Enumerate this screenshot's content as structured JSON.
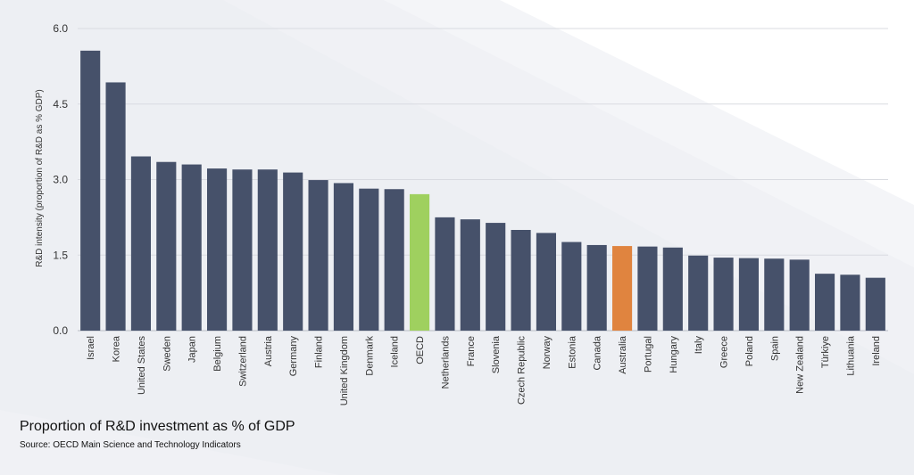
{
  "chart_data": {
    "type": "bar",
    "ylabel": "R&D intensity (proportion of R&D as % GDP)",
    "xlabel": "",
    "ylim": [
      0,
      6
    ],
    "yticks": [
      "0.0",
      "1.5",
      "3.0",
      "4.5",
      "6.0"
    ],
    "grid": true,
    "categories": [
      "Israel",
      "Korea",
      "United States",
      "Sweden",
      "Japan",
      "Belgium",
      "Switzerland",
      "Austria",
      "Germany",
      "Finland",
      "United Kingdom",
      "Denmark",
      "Iceland",
      "OECD",
      "Netherlands",
      "France",
      "Slovenia",
      "Czech Republic",
      "Norway",
      "Estonia",
      "Canada",
      "Australia",
      "Portugal",
      "Hungary",
      "Italy",
      "Greece",
      "Poland",
      "Spain",
      "New Zealand",
      "Türkiye",
      "Lithuania",
      "Ireland"
    ],
    "values": [
      5.56,
      4.93,
      3.46,
      3.35,
      3.3,
      3.22,
      3.2,
      3.2,
      3.14,
      2.99,
      2.93,
      2.82,
      2.81,
      2.71,
      2.25,
      2.21,
      2.14,
      2.0,
      1.94,
      1.76,
      1.7,
      1.68,
      1.67,
      1.65,
      1.49,
      1.45,
      1.44,
      1.43,
      1.41,
      1.13,
      1.11,
      1.05
    ],
    "colors": {
      "default": "#46516a",
      "OECD": "#9fd05f",
      "Australia": "#e0843f",
      "grid": "#d9dbe1",
      "text": "#333333"
    }
  },
  "caption": {
    "title": "Proportion of R&D investment as % of GDP",
    "source": "Source: OECD Main Science and Technology Indicators"
  }
}
